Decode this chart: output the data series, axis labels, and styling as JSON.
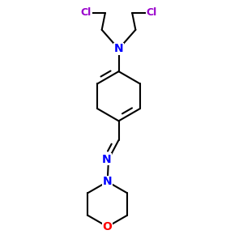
{
  "background_color": "#ffffff",
  "atom_colors": {
    "N": "#0000ff",
    "O": "#ff0000",
    "Cl": "#9900cc",
    "C": "#000000"
  },
  "bond_color": "#000000",
  "bond_width": 1.5
}
